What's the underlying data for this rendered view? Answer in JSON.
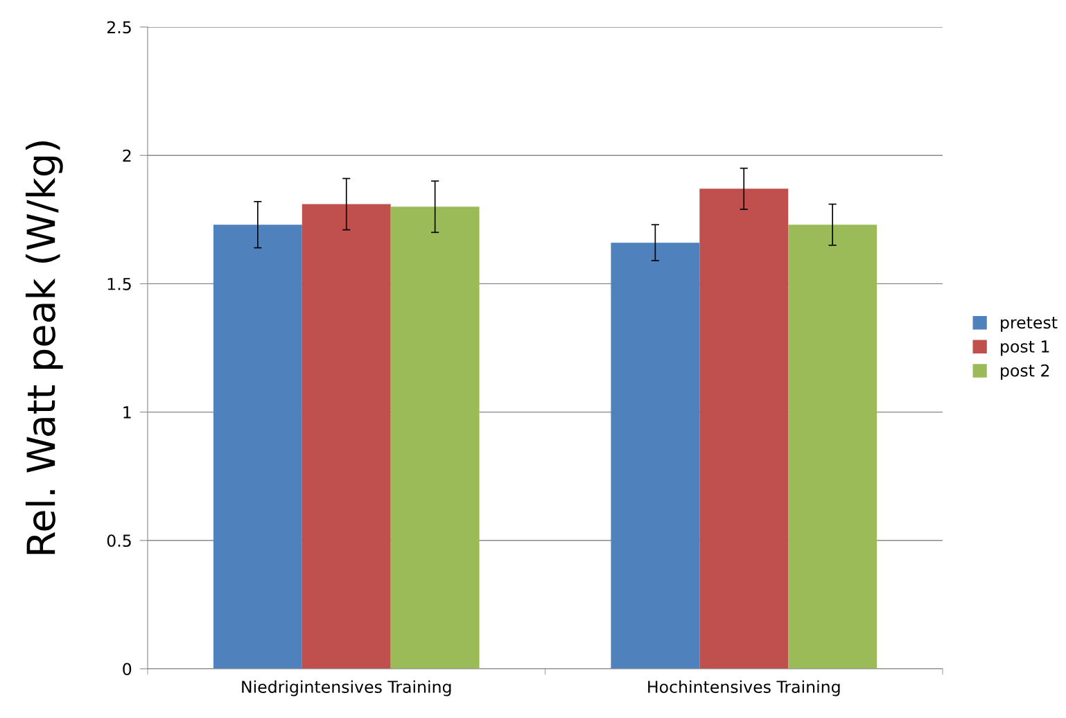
{
  "chart_data": {
    "type": "bar",
    "ylabel": "Rel. Watt peak (W/kg)",
    "categories": [
      "Niedrigintensives Training",
      "Hochintensives Training"
    ],
    "series": [
      {
        "name": "pretest",
        "color": "#4f81bd",
        "values": [
          1.73,
          1.66
        ],
        "errors": [
          0.09,
          0.07
        ]
      },
      {
        "name": "post 1",
        "color": "#c0504d",
        "values": [
          1.81,
          1.87
        ],
        "errors": [
          0.1,
          0.08
        ]
      },
      {
        "name": "post 2",
        "color": "#9bbb59",
        "values": [
          1.8,
          1.73
        ],
        "errors": [
          0.1,
          0.08
        ]
      }
    ],
    "ylim": [
      0,
      2.5
    ],
    "yticks": [
      0,
      0.5,
      1,
      1.5,
      2,
      2.5
    ],
    "grid": "y",
    "legend": "right"
  }
}
